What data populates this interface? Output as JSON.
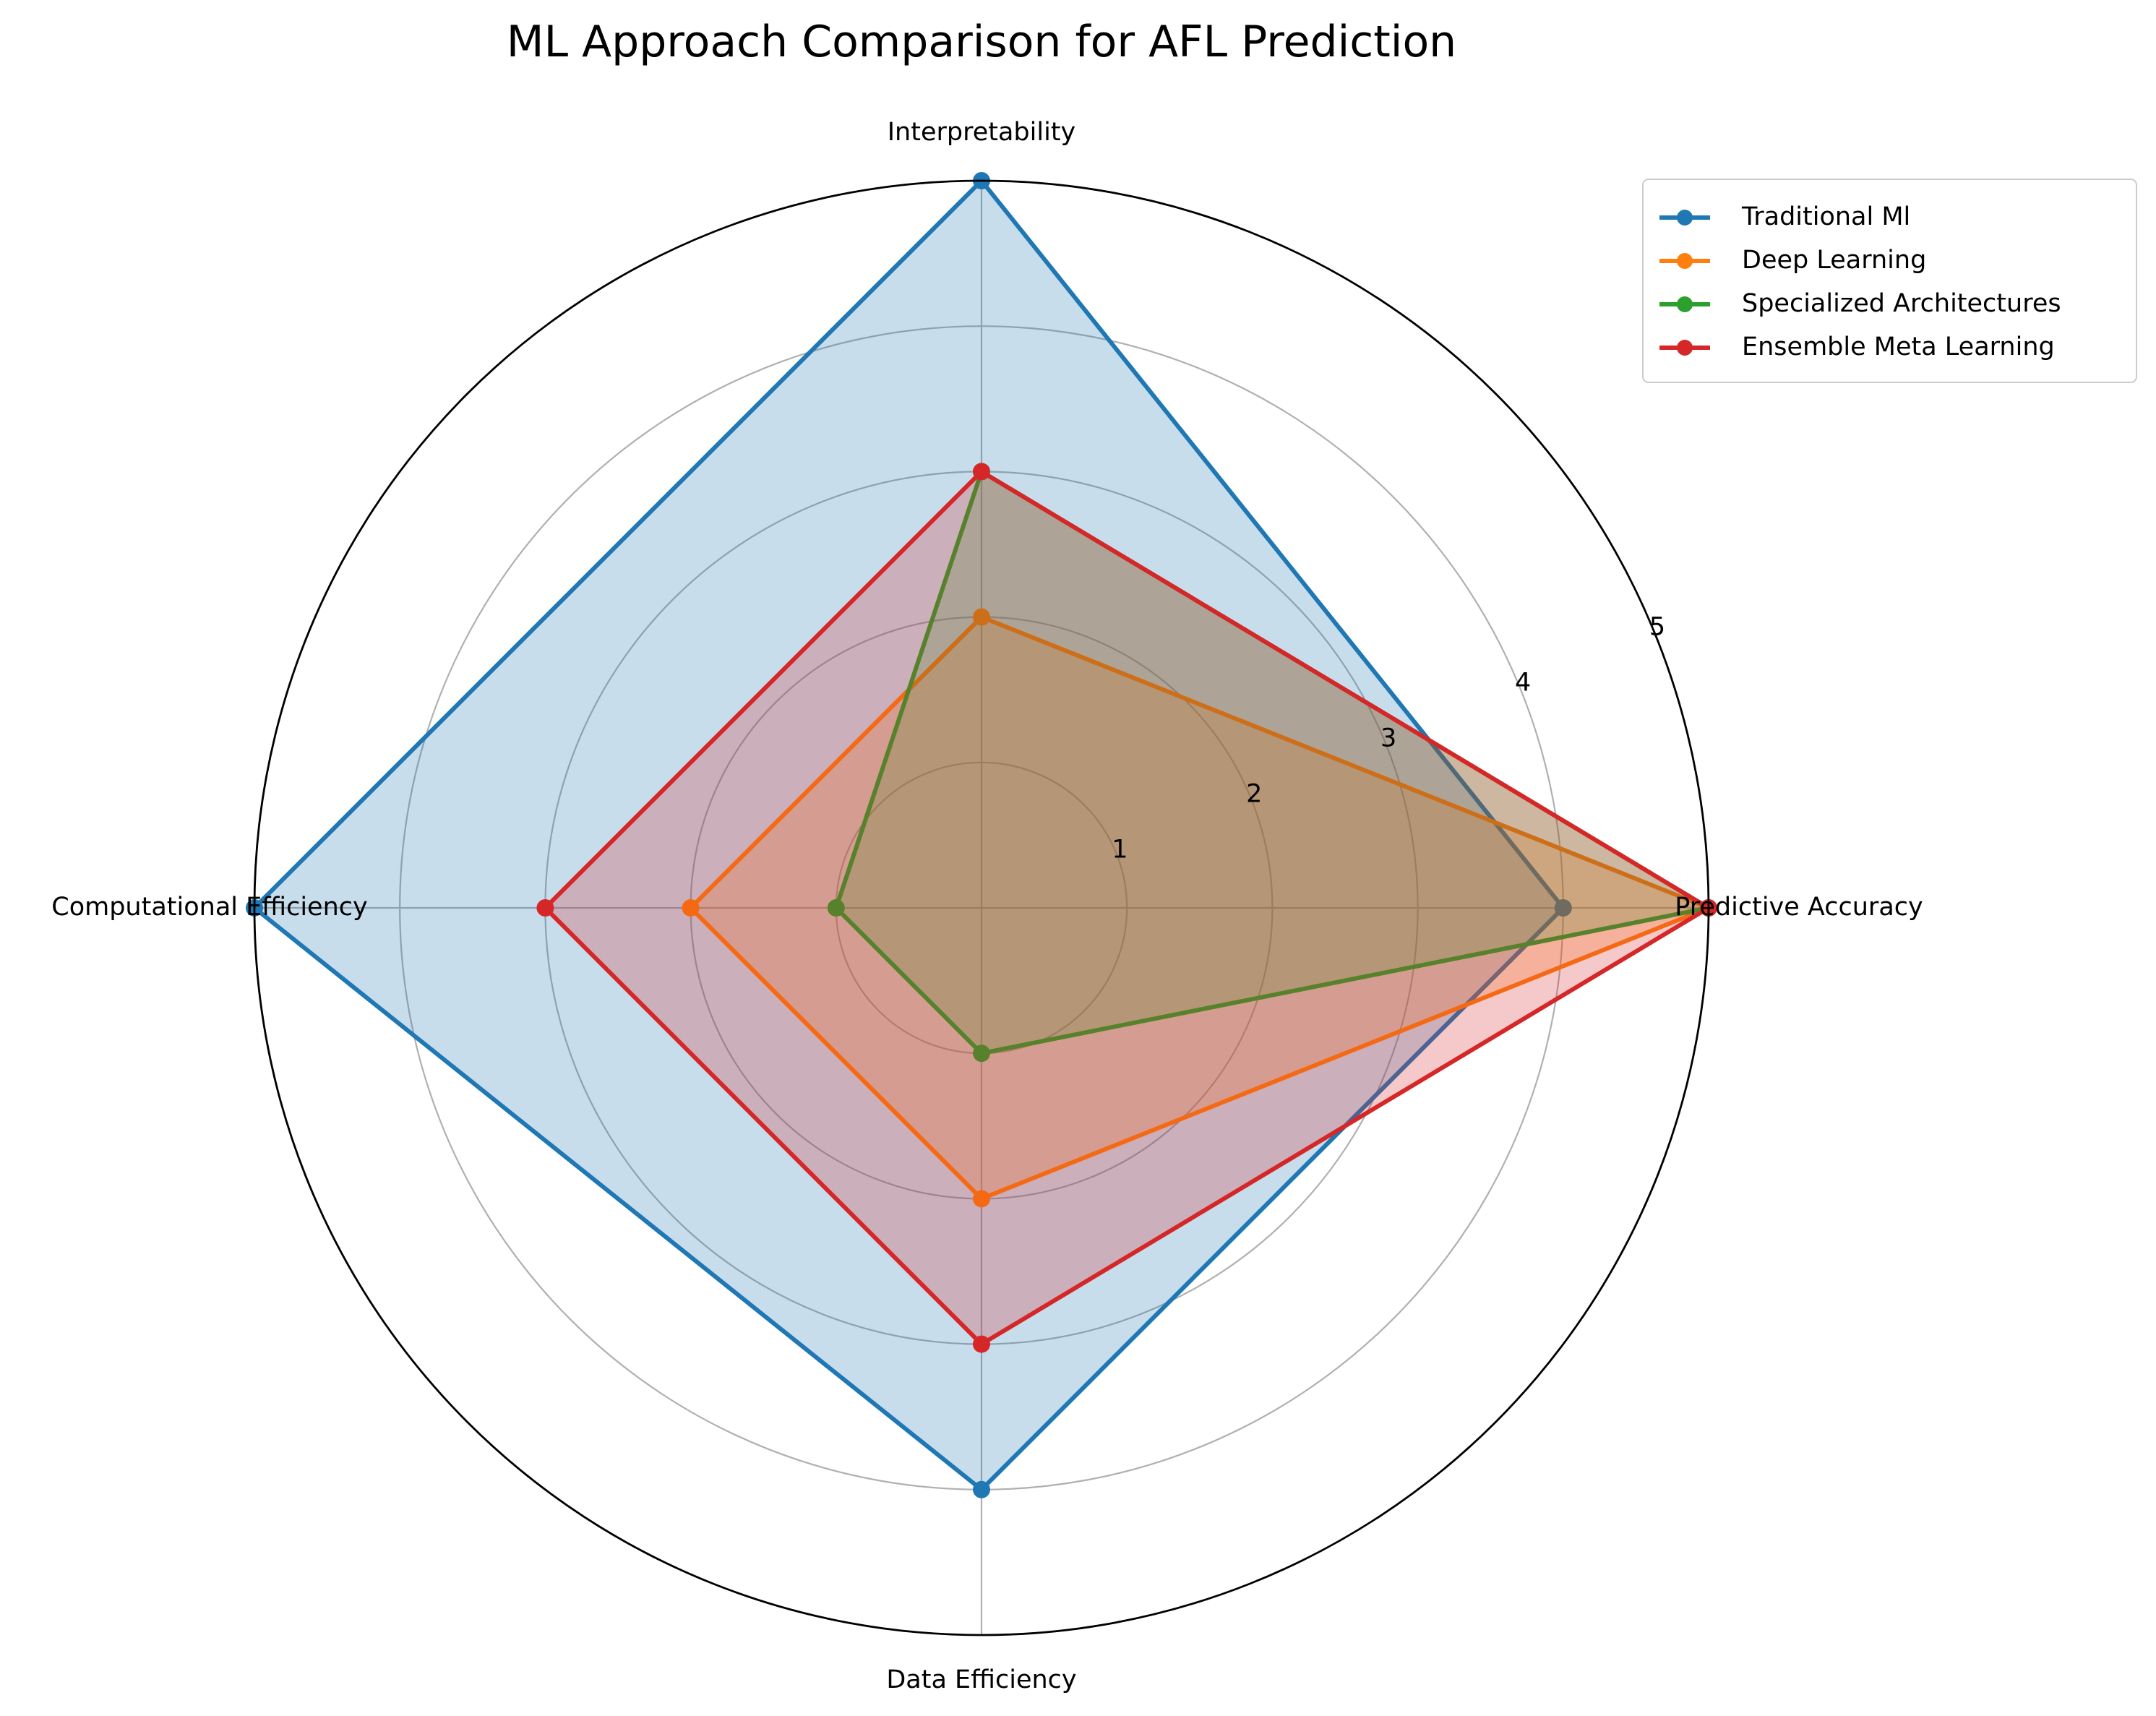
{
  "chart_data": {
    "type": "radar",
    "title": "ML Approach Comparison for AFL Prediction",
    "categories": [
      "Predictive Accuracy",
      "Interpretability",
      "Computational Efficiency",
      "Data Efficiency"
    ],
    "rlim": [
      0,
      5
    ],
    "rticks": [
      "1",
      "2",
      "3",
      "4",
      "5"
    ],
    "grid": true,
    "legend_position": "top-right",
    "series": [
      {
        "name": "Traditional Ml",
        "values": [
          4,
          5,
          5,
          4
        ],
        "color": "#1f77b4"
      },
      {
        "name": "Deep Learning",
        "values": [
          5,
          2,
          2,
          2
        ],
        "color": "#ff7f0e"
      },
      {
        "name": "Specialized Architectures",
        "values": [
          5,
          3,
          1,
          1
        ],
        "color": "#2ca02c"
      },
      {
        "name": "Ensemble Meta Learning",
        "values": [
          5,
          3,
          3,
          3
        ],
        "color": "#d62728"
      }
    ]
  }
}
